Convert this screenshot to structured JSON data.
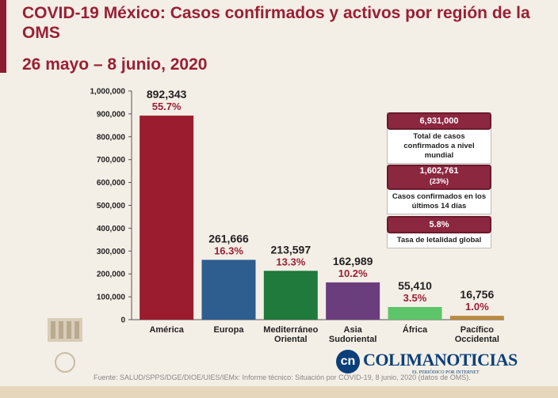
{
  "header": {
    "title": "COVID-19 México: Casos confirmados y activos por región de la OMS",
    "subtitle": "26 mayo – 8 junio, 2020"
  },
  "chart_data": {
    "type": "bar",
    "categories": [
      "América",
      "Europa",
      "Mediterráneo Oriental",
      "Asia Sudoriental",
      "África",
      "Pacífico Occidental"
    ],
    "category_lines": [
      [
        "América"
      ],
      [
        "Europa"
      ],
      [
        "Mediterráneo",
        "Oriental"
      ],
      [
        "Asia",
        "Sudoriental"
      ],
      [
        "África"
      ],
      [
        "Pacífico",
        "Occidental"
      ]
    ],
    "values": [
      892343,
      261666,
      213597,
      162989,
      55410,
      16756
    ],
    "value_labels": [
      "892,343",
      "261,666",
      "213,597",
      "162,989",
      "55,410",
      "16,756"
    ],
    "percent_labels": [
      "55.7%",
      "16.3%",
      "13.3%",
      "10.2%",
      "3.5%",
      "1.0%"
    ],
    "colors": [
      "#9b1c2e",
      "#2e5d8f",
      "#1f7a3c",
      "#6a3d7c",
      "#5cc56a",
      "#b98a3f"
    ],
    "ylim": [
      0,
      1000000
    ],
    "yticks": [
      0,
      100000,
      200000,
      300000,
      400000,
      500000,
      600000,
      700000,
      800000,
      900000,
      1000000
    ],
    "ytick_labels": [
      "0",
      "100,000",
      "200,000",
      "300,000",
      "400,000",
      "500,000",
      "600,000",
      "700,000",
      "800,000",
      "900,000",
      "1,000,000"
    ],
    "grid": false,
    "percent_color": "#9a1f35"
  },
  "info_boxes": [
    {
      "value": "6,931,000",
      "text": "Total de casos confirmados a nivel mundial"
    },
    {
      "value": "1,602,761",
      "subvalue": "(23%)",
      "text": "Casos confirmados en los últimos 14 días"
    },
    {
      "value": "5.8%",
      "text": "Tasa de letalidad global"
    }
  ],
  "source": "Fuente: SALUD/SPPS/DGE/DIOE/UIES/IEMx: Informe técnico: Situación por COVID-19, 8 junio, 2020 (datos de OMS).",
  "brand": {
    "name": "COLIMANOTICIAS",
    "tagline": "EL PERIÓDICO POR INTERNET",
    "logo_letter": "cn"
  }
}
